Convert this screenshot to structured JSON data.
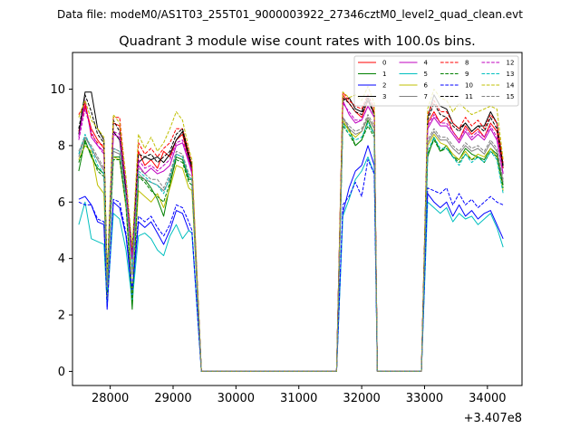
{
  "figure": {
    "suptitle": "Data file: modeM0/AS1T03_255T01_9000003922_27346cztM0_level2_quad_clean.evt",
    "title": "Quadrant 3 module wise count rates with 100.0s bins.",
    "offset_label": "+3.407e8"
  },
  "chart_data": {
    "type": "line",
    "title": "Quadrant 3 module wise count rates with 100.0s bins.",
    "xlabel": "",
    "ylabel": "",
    "x_offset": 340700000,
    "xlim": [
      27400,
      34550
    ],
    "ylim": [
      -0.5,
      11.3
    ],
    "x_ticks": [
      28000,
      29000,
      30000,
      31000,
      32000,
      33000,
      34000
    ],
    "x_tick_labels": [
      "28000",
      "29000",
      "30000",
      "31000",
      "32000",
      "33000",
      "34000"
    ],
    "y_ticks": [
      0,
      2,
      4,
      6,
      8,
      10
    ],
    "y_tick_labels": [
      "0",
      "2",
      "4",
      "6",
      "8",
      "10"
    ],
    "grid": false,
    "legend_placement": "top-right",
    "legend_columns": 4,
    "x": [
      27500,
      27600,
      27700,
      27800,
      27900,
      27950,
      28050,
      28150,
      28250,
      28350,
      28450,
      28550,
      28650,
      28750,
      28850,
      28950,
      29050,
      29150,
      29250,
      29300,
      29450,
      29550,
      29700,
      30000,
      30300,
      30600,
      30900,
      31200,
      31500,
      31600,
      31700,
      31800,
      31900,
      32000,
      32100,
      32200,
      32250,
      32400,
      32700,
      32950,
      33050,
      33150,
      33250,
      33350,
      33450,
      33550,
      33650,
      33750,
      33850,
      33950,
      34050,
      34150,
      34250
    ],
    "series": [
      {
        "name": "0",
        "color": "#ff0000",
        "dash": "solid",
        "values": [
          8.5,
          9.4,
          8.6,
          8.2,
          7.9,
          3.0,
          8.8,
          8.7,
          6.5,
          4.0,
          7.8,
          7.3,
          7.5,
          7.2,
          7.8,
          7.6,
          8.2,
          8.4,
          7.5,
          7.1,
          0,
          0,
          0,
          0,
          0,
          0,
          0,
          0,
          0,
          0,
          9.8,
          9.5,
          9.2,
          9.0,
          9.6,
          9.2,
          0,
          0,
          0,
          0,
          8.8,
          9.2,
          8.8,
          9.0,
          8.5,
          8.2,
          8.7,
          8.4,
          8.6,
          8.3,
          8.8,
          8.5,
          7.2
        ]
      },
      {
        "name": "1",
        "color": "#008000",
        "dash": "solid",
        "values": [
          7.1,
          8.2,
          7.6,
          7.2,
          7.0,
          2.8,
          7.6,
          7.6,
          6.0,
          2.2,
          6.9,
          6.8,
          6.5,
          6.1,
          5.5,
          6.6,
          7.6,
          7.5,
          6.8,
          6.8,
          0,
          0,
          0,
          0,
          0,
          0,
          0,
          0,
          0,
          0,
          8.8,
          8.6,
          8.0,
          8.2,
          8.9,
          8.4,
          0,
          0,
          0,
          0,
          7.6,
          8.3,
          7.8,
          8.0,
          7.6,
          7.5,
          7.9,
          7.7,
          7.6,
          7.5,
          7.9,
          7.7,
          6.6
        ]
      },
      {
        "name": "2",
        "color": "#0000ff",
        "dash": "solid",
        "values": [
          6.1,
          6.2,
          5.9,
          5.3,
          5.2,
          2.2,
          6.0,
          5.8,
          4.8,
          2.7,
          5.3,
          5.1,
          5.3,
          4.9,
          4.5,
          5.0,
          5.7,
          5.6,
          5.0,
          4.9,
          0,
          0,
          0,
          0,
          0,
          0,
          0,
          0,
          0,
          0,
          5.6,
          6.5,
          7.1,
          7.3,
          8.0,
          7.3,
          0,
          0,
          0,
          0,
          6.3,
          6.0,
          5.8,
          6.0,
          5.5,
          5.9,
          5.5,
          5.7,
          5.4,
          5.6,
          5.7,
          5.2,
          4.7
        ]
      },
      {
        "name": "3",
        "color": "#000000",
        "dash": "solid",
        "values": [
          8.4,
          9.9,
          9.9,
          8.6,
          8.2,
          3.2,
          8.5,
          8.2,
          6.4,
          4.3,
          7.4,
          7.6,
          7.5,
          7.6,
          7.4,
          7.7,
          8.2,
          8.5,
          7.6,
          7.2,
          0,
          0,
          0,
          0,
          0,
          0,
          0,
          0,
          0,
          0,
          9.6,
          9.7,
          9.3,
          9.2,
          9.7,
          9.1,
          0,
          0,
          0,
          0,
          9.0,
          9.8,
          9.4,
          9.3,
          8.8,
          8.6,
          8.8,
          8.5,
          8.7,
          8.7,
          9.2,
          8.8,
          7.3
        ]
      },
      {
        "name": "4",
        "color": "#bf00bf",
        "dash": "solid",
        "values": [
          8.3,
          9.6,
          8.3,
          8.0,
          7.8,
          3.0,
          8.4,
          8.3,
          6.6,
          4.0,
          7.3,
          7.0,
          7.2,
          7.0,
          7.1,
          7.3,
          8.0,
          8.1,
          7.4,
          7.0,
          0,
          0,
          0,
          0,
          0,
          0,
          0,
          0,
          0,
          0,
          9.6,
          9.1,
          8.8,
          8.9,
          9.4,
          9.0,
          0,
          0,
          0,
          0,
          8.6,
          9.0,
          8.7,
          8.7,
          8.4,
          8.1,
          8.5,
          8.2,
          8.4,
          8.2,
          8.6,
          8.2,
          7.0
        ]
      },
      {
        "name": "5",
        "color": "#00bfbf",
        "dash": "solid",
        "values": [
          5.2,
          6.0,
          4.7,
          4.6,
          4.5,
          2.4,
          5.6,
          5.4,
          4.3,
          2.5,
          4.8,
          4.9,
          4.7,
          4.3,
          4.1,
          4.8,
          5.2,
          4.7,
          5.0,
          4.9,
          0,
          0,
          0,
          0,
          0,
          0,
          0,
          0,
          0,
          0,
          5.5,
          6.1,
          6.8,
          7.1,
          7.6,
          7.0,
          0,
          0,
          0,
          0,
          6.0,
          5.8,
          5.6,
          5.8,
          5.3,
          5.6,
          5.4,
          5.5,
          5.2,
          5.4,
          5.6,
          5.1,
          4.4
        ]
      },
      {
        "name": "6",
        "color": "#bfbf00",
        "dash": "solid",
        "values": [
          7.5,
          8.0,
          7.8,
          6.6,
          6.3,
          2.6,
          7.6,
          7.5,
          5.8,
          2.8,
          6.4,
          6.2,
          6.0,
          6.3,
          5.8,
          6.5,
          7.3,
          7.2,
          6.5,
          6.4,
          0,
          0,
          0,
          0,
          0,
          0,
          0,
          0,
          0,
          0,
          8.9,
          8.5,
          8.3,
          8.5,
          9.0,
          8.6,
          0,
          0,
          0,
          0,
          8.0,
          8.4,
          8.1,
          8.0,
          7.7,
          7.5,
          7.8,
          7.5,
          7.7,
          7.6,
          7.9,
          7.6,
          6.4
        ]
      },
      {
        "name": "7",
        "color": "#808080",
        "dash": "solid",
        "values": [
          7.6,
          8.3,
          7.9,
          7.5,
          7.1,
          2.9,
          7.8,
          7.7,
          6.1,
          3.5,
          7.0,
          6.8,
          6.7,
          6.6,
          6.4,
          6.8,
          7.7,
          7.6,
          6.9,
          6.8,
          0,
          0,
          0,
          0,
          0,
          0,
          0,
          0,
          0,
          0,
          9.0,
          8.6,
          8.4,
          8.5,
          9.0,
          8.6,
          0,
          0,
          0,
          0,
          8.1,
          8.5,
          8.2,
          8.2,
          7.9,
          7.7,
          8.0,
          7.8,
          7.9,
          7.7,
          8.1,
          7.8,
          6.7
        ]
      },
      {
        "name": "8",
        "color": "#ff0000",
        "dash": "dashed",
        "values": [
          9.1,
          9.5,
          8.4,
          8.1,
          8.0,
          3.1,
          9.0,
          9.0,
          6.8,
          4.2,
          8.1,
          7.7,
          7.9,
          7.6,
          7.9,
          8.1,
          8.6,
          8.6,
          7.8,
          7.3,
          0,
          0,
          0,
          0,
          0,
          0,
          0,
          0,
          0,
          0,
          9.9,
          9.6,
          9.4,
          9.3,
          9.8,
          9.3,
          0,
          0,
          0,
          0,
          9.1,
          9.6,
          9.2,
          9.2,
          8.8,
          8.6,
          9.0,
          8.7,
          8.9,
          8.6,
          9.1,
          8.8,
          7.4
        ]
      },
      {
        "name": "9",
        "color": "#008000",
        "dash": "dashed",
        "values": [
          7.4,
          8.1,
          7.7,
          7.1,
          6.9,
          2.8,
          7.5,
          7.5,
          5.9,
          2.4,
          6.9,
          6.7,
          6.4,
          6.2,
          6.0,
          6.7,
          7.5,
          7.4,
          6.7,
          6.6,
          0,
          0,
          0,
          0,
          0,
          0,
          0,
          0,
          0,
          0,
          8.7,
          8.4,
          8.0,
          8.2,
          8.7,
          8.3,
          0,
          0,
          0,
          0,
          7.7,
          8.2,
          7.8,
          7.9,
          7.6,
          7.4,
          7.7,
          7.5,
          7.6,
          7.4,
          7.8,
          7.6,
          6.5
        ]
      },
      {
        "name": "10",
        "color": "#0000ff",
        "dash": "dashed",
        "values": [
          6.0,
          5.9,
          5.9,
          5.4,
          5.3,
          2.3,
          6.1,
          6.0,
          4.9,
          2.9,
          5.5,
          5.3,
          5.5,
          5.1,
          4.8,
          5.2,
          5.9,
          5.8,
          5.3,
          5.0,
          0,
          0,
          0,
          0,
          0,
          0,
          0,
          0,
          0,
          0,
          5.9,
          6.2,
          6.7,
          6.2,
          7.5,
          7.0,
          0,
          0,
          0,
          0,
          6.5,
          6.4,
          6.3,
          6.5,
          5.9,
          6.3,
          5.9,
          6.1,
          5.8,
          6.0,
          6.2,
          6.0,
          5.9
        ]
      },
      {
        "name": "11",
        "color": "#000000",
        "dash": "dashed",
        "values": [
          8.6,
          9.8,
          9.2,
          8.4,
          8.1,
          3.3,
          8.9,
          8.5,
          6.5,
          4.3,
          7.7,
          7.6,
          7.7,
          7.4,
          7.6,
          7.8,
          8.4,
          8.6,
          7.7,
          7.3,
          0,
          0,
          0,
          0,
          0,
          0,
          0,
          0,
          0,
          0,
          9.7,
          9.5,
          9.2,
          9.1,
          9.6,
          9.1,
          0,
          0,
          0,
          0,
          8.9,
          9.5,
          9.1,
          9.0,
          8.7,
          8.5,
          8.8,
          8.5,
          8.7,
          8.5,
          9.0,
          8.6,
          7.2
        ]
      },
      {
        "name": "12",
        "color": "#bf00bf",
        "dash": "dashed",
        "values": [
          8.2,
          9.3,
          8.5,
          8.0,
          7.7,
          3.0,
          8.5,
          8.4,
          6.6,
          4.0,
          7.5,
          7.2,
          7.3,
          7.1,
          7.3,
          7.5,
          8.1,
          8.2,
          7.5,
          7.1,
          0,
          0,
          0,
          0,
          0,
          0,
          0,
          0,
          0,
          0,
          9.5,
          9.2,
          8.9,
          8.9,
          9.4,
          9.0,
          0,
          0,
          0,
          0,
          8.7,
          9.1,
          8.8,
          8.8,
          8.5,
          8.2,
          8.6,
          8.3,
          8.5,
          8.3,
          8.7,
          8.3,
          7.0
        ]
      },
      {
        "name": "13",
        "color": "#00bfbf",
        "dash": "dashed",
        "values": [
          7.7,
          8.4,
          7.9,
          7.3,
          7.0,
          2.9,
          7.9,
          7.8,
          6.0,
          3.6,
          7.1,
          6.9,
          6.7,
          6.6,
          6.3,
          6.9,
          7.7,
          7.6,
          6.9,
          6.8,
          0,
          0,
          0,
          0,
          0,
          0,
          0,
          0,
          0,
          0,
          8.8,
          8.4,
          8.2,
          8.3,
          8.8,
          8.4,
          0,
          0,
          0,
          0,
          7.8,
          8.3,
          7.9,
          7.9,
          7.6,
          7.3,
          7.7,
          7.4,
          7.6,
          7.4,
          7.8,
          7.5,
          6.3
        ]
      },
      {
        "name": "14",
        "color": "#bfbf00",
        "dash": "dashed",
        "values": [
          9.0,
          9.6,
          8.9,
          8.6,
          8.3,
          3.4,
          9.1,
          8.8,
          6.9,
          4.4,
          8.4,
          7.9,
          8.3,
          7.8,
          8.1,
          8.6,
          9.2,
          8.9,
          7.9,
          7.5,
          0,
          0,
          0,
          0,
          0,
          0,
          0,
          0,
          0,
          0,
          9.9,
          9.7,
          9.8,
          9.6,
          10.1,
          9.5,
          0,
          0,
          0,
          0,
          9.3,
          10.0,
          9.7,
          9.6,
          9.2,
          9.5,
          9.3,
          9.1,
          9.2,
          9.3,
          9.4,
          9.3,
          7.5
        ]
      },
      {
        "name": "15",
        "color": "#808080",
        "dash": "dashed",
        "values": [
          7.8,
          8.3,
          8.0,
          7.6,
          7.2,
          3.0,
          7.9,
          7.8,
          6.2,
          3.4,
          7.2,
          7.0,
          6.8,
          6.8,
          6.5,
          7.0,
          7.8,
          7.7,
          7.0,
          6.9,
          0,
          0,
          0,
          0,
          0,
          0,
          0,
          0,
          0,
          0,
          9.0,
          8.7,
          8.5,
          8.6,
          9.1,
          8.7,
          0,
          0,
          0,
          0,
          8.2,
          8.6,
          8.3,
          8.3,
          8.0,
          7.8,
          8.1,
          7.9,
          8.0,
          7.8,
          8.2,
          7.9,
          6.8
        ]
      }
    ]
  }
}
